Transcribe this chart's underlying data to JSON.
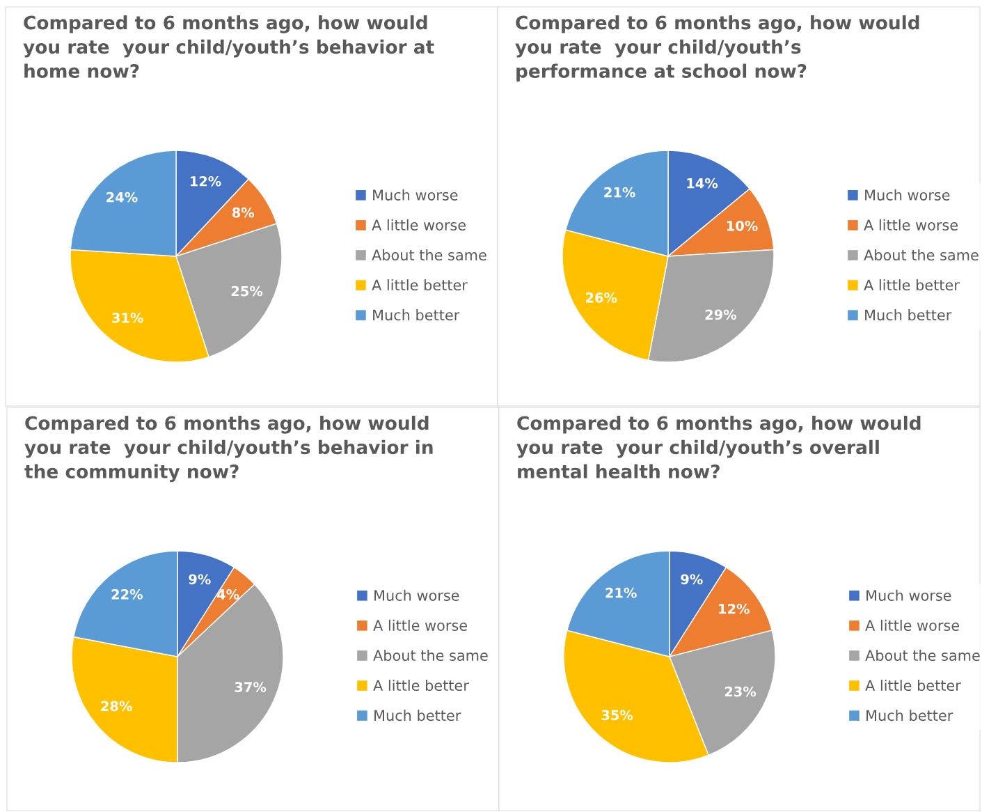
{
  "chart_data": [
    {
      "type": "pie",
      "title": "Compared to 6 months ago, how would\nyou rate  your child/youth’s behavior at\nhome now?",
      "categories": [
        "Much worse",
        "A little worse",
        "About the same",
        "A little better",
        "Much better"
      ],
      "values": [
        12,
        8,
        25,
        31,
        24
      ],
      "colors": [
        "#4472c4",
        "#ed7d31",
        "#a5a5a5",
        "#ffc000",
        "#5b9bd5"
      ],
      "value_labels": [
        "12%",
        "8%",
        "25%",
        "31%",
        "24%"
      ],
      "legend": "right"
    },
    {
      "type": "pie",
      "title": "Compared to 6 months ago, how would\nyou rate  your child/youth’s\nperformance at school now?",
      "categories": [
        "Much worse",
        "A little worse",
        "About the same",
        "A little better",
        "Much better"
      ],
      "values": [
        14,
        10,
        29,
        26,
        21
      ],
      "colors": [
        "#4472c4",
        "#ed7d31",
        "#a5a5a5",
        "#ffc000",
        "#5b9bd5"
      ],
      "value_labels": [
        "14%",
        "10%",
        "29%",
        "26%",
        "21%"
      ],
      "legend": "right"
    },
    {
      "type": "pie",
      "title": "Compared to 6 months ago, how would\nyou rate  your child/youth’s behavior in\nthe community now?",
      "categories": [
        "Much worse",
        "A little worse",
        "About the same",
        "A little better",
        "Much better"
      ],
      "values": [
        9,
        4,
        37,
        28,
        22
      ],
      "colors": [
        "#4472c4",
        "#ed7d31",
        "#a5a5a5",
        "#ffc000",
        "#5b9bd5"
      ],
      "value_labels": [
        "9%",
        "4%",
        "37%",
        "28%",
        "22%"
      ],
      "legend": "right"
    },
    {
      "type": "pie",
      "title": "Compared to 6 months ago, how would\nyou rate  your child/youth’s overall\nmental health now?",
      "categories": [
        "Much worse",
        "A little worse",
        "About the same",
        "A little better",
        "Much better"
      ],
      "values": [
        9,
        12,
        23,
        35,
        21
      ],
      "colors": [
        "#4472c4",
        "#ed7d31",
        "#a5a5a5",
        "#ffc000",
        "#5b9bd5"
      ],
      "value_labels": [
        "9%",
        "12%",
        "23%",
        "35%",
        "21%"
      ],
      "legend": "right"
    }
  ]
}
